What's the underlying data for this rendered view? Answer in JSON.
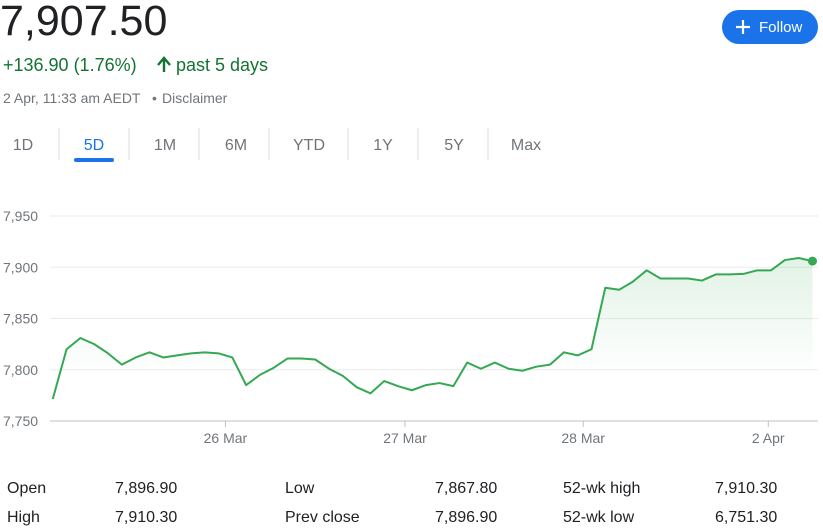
{
  "header": {
    "price": "7,907.50",
    "change": "+136.90 (1.76%)",
    "period": "past 5 days",
    "timestamp": "2 Apr, 11:33 am AEDT",
    "separator": "•",
    "disclaimer": "Disclaimer",
    "follow": "Follow"
  },
  "tabs": [
    "1D",
    "5D",
    "1M",
    "6M",
    "YTD",
    "1Y",
    "5Y",
    "Max"
  ],
  "selected_tab": 1,
  "chart_data": {
    "type": "line",
    "color": "#34a853",
    "x": [
      0,
      1,
      2,
      3,
      4,
      5,
      6,
      7,
      8,
      9,
      10,
      11,
      12,
      13,
      14,
      15,
      16,
      17,
      18,
      19,
      20,
      21,
      22,
      23,
      24,
      25,
      26,
      27,
      28,
      29,
      30,
      31,
      32,
      33,
      34,
      35,
      36,
      37,
      38,
      39,
      40,
      41,
      42,
      43,
      44,
      45,
      46,
      47,
      48,
      49,
      50,
      51,
      52,
      53,
      54,
      55
    ],
    "values": [
      7771.5,
      7820,
      7831,
      7825,
      7816,
      7805,
      7812,
      7817,
      7812,
      7814,
      7816,
      7817,
      7816,
      7812,
      7785,
      7795,
      7802,
      7811,
      7811,
      7810,
      7801,
      7794,
      7783,
      7777,
      7789,
      7784,
      7780,
      7785,
      7787,
      7784,
      7807,
      7801,
      7807,
      7801,
      7799,
      7803,
      7805,
      7817,
      7814,
      7820,
      7880,
      7878,
      7886,
      7897,
      7889,
      7889,
      7889,
      7887,
      7893,
      7893,
      7893.5,
      7897,
      7897,
      7907,
      7909,
      7906
    ],
    "xlim": [
      -0.2,
      55.4
    ],
    "xticks": [
      {
        "value": 12.5,
        "label": "26 Mar"
      },
      {
        "value": 25.5,
        "label": "27 Mar"
      },
      {
        "value": 38.4,
        "label": "28 Mar"
      },
      {
        "value": 51.8,
        "label": "2 Apr"
      }
    ],
    "ylim": [
      7750,
      7950
    ],
    "yticks": [
      {
        "value": 7750,
        "label": "7,750"
      },
      {
        "value": 7800,
        "label": "7,800"
      },
      {
        "value": 7850,
        "label": "7,850"
      },
      {
        "value": 7900,
        "label": "7,900"
      },
      {
        "value": 7950,
        "label": "7,950"
      }
    ],
    "grid": true
  },
  "stats": [
    [
      "Open",
      "7,896.90",
      "Low",
      "7,867.80",
      "52-wk high",
      "7,910.30"
    ],
    [
      "High",
      "7,910.30",
      "Prev close",
      "7,896.90",
      "52-wk low",
      "6,751.30"
    ]
  ]
}
